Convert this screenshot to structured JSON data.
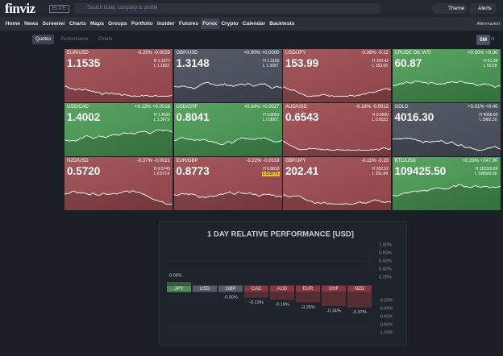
{
  "header": {
    "logo": "finviz",
    "badge": "ELITE",
    "search": "Search ticker, company or profile",
    "theme": "Theme",
    "alerts": "Alerts"
  },
  "nav": {
    "items": [
      "Home",
      "News",
      "Screener",
      "Charts",
      "Maps",
      "Groups",
      "Portfolio",
      "Insider",
      "Futures",
      "Forex",
      "Crypto",
      "Calendar",
      "Backtests"
    ],
    "active": "Forex",
    "right": "Aftermarket"
  },
  "tabs": {
    "items": [
      "Quotes",
      "Performance",
      "Charts"
    ],
    "active": "Quotes",
    "timeframe": "5M",
    "hour": "H"
  },
  "tiles": [
    {
      "name": "EUR/USD",
      "change": "-0.25% -0.0029",
      "value": "1.1535",
      "high": "H 1.1577",
      "low": "L 1.1522",
      "color": "red"
    },
    {
      "name": "GBP/USD",
      "change": "+0.00% +0.0000",
      "value": "1.3148",
      "high": "H 1.3165",
      "low": "L 1.3097",
      "color": "gray"
    },
    {
      "name": "USD/JPY",
      "change": "-0.08% -0.12",
      "value": "153.99",
      "high": "H 154.42",
      "low": "L 153.65",
      "color": "red"
    },
    {
      "name": "CRUDE OIL WTI",
      "change": "+0.50% +0.30",
      "value": "60.87",
      "high": "H 61.38",
      "low": "L 59.99",
      "color": "green"
    },
    {
      "name": "USD/CAD",
      "change": "+0.13% +0.0018",
      "value": "1.4002",
      "high": "H 1.4036",
      "low": "L 1.3979",
      "color": "green"
    },
    {
      "name": "USD/CHF",
      "change": "+0.34% +0.0027",
      "value": "0.8041",
      "high": "H 0.8052",
      "low": "L 0.8007",
      "color": "green"
    },
    {
      "name": "AUD/USD",
      "change": "-0.18% -0.0012",
      "value": "0.6543",
      "high": "H 0.6560",
      "low": "L 0.6533",
      "color": "red"
    },
    {
      "name": "GOLD",
      "change": "+0.01% +0.40",
      "value": "4016.30",
      "high": "H 4058.90",
      "low": "L 3982.30",
      "color": "gray"
    },
    {
      "name": "NZD/USD",
      "change": "-0.37% -0.0021",
      "value": "0.5720",
      "high": "H 0.5745",
      "low": "L 0.5714",
      "color": "red"
    },
    {
      "name": "EUR/GBP",
      "change": "-0.22% -0.0019",
      "value": "0.8773",
      "high": "H 0.8818",
      "low": "L 0.8771",
      "color": "red",
      "low_highlight": true
    },
    {
      "name": "GBP/JPY",
      "change": "-0.11% -0.23",
      "value": "202.41",
      "high": "H 202.92",
      "low": "L 201.84",
      "color": "red"
    },
    {
      "name": "BTC/USD",
      "change": "+0.23% +247.90",
      "value": "109425.50",
      "high": "H 111026.80",
      "low": "L 108500.00",
      "color": "green"
    }
  ],
  "chart_data": {
    "type": "bar",
    "title": "1 DAY RELATIVE PERFORMANCE  [USD]",
    "categories": [
      "JPY",
      "USD",
      "GBP",
      "CAD",
      "AUD",
      "EUR",
      "CHF",
      "NZD"
    ],
    "values": [
      0.08,
      0,
      -0.001,
      -0.13,
      -0.18,
      -0.25,
      -0.34,
      -0.37
    ],
    "value_labels": [
      "0.08%",
      null,
      "-0.00%",
      "-0.13%",
      "-0.18%",
      "-0.25%",
      "-0.34%",
      "-0.37%"
    ],
    "colors": [
      "#4f8a55",
      "#555b67",
      "#555b67",
      "#86383e",
      "#86383e",
      "#86383e",
      "#86383e",
      "#86383e"
    ],
    "ylim": [
      -1,
      1
    ],
    "yticks": [
      {
        "value": 1,
        "label": "1.00%"
      },
      {
        "value": 0.8,
        "label": "0.80%"
      },
      {
        "value": 0.6,
        "label": "0.60%"
      },
      {
        "value": 0.4,
        "label": "0.40%"
      },
      {
        "value": 0.2,
        "label": "0.20%"
      },
      {
        "value": -0.2,
        "label": "-0.20%"
      },
      {
        "value": -0.4,
        "label": "-0.40%"
      },
      {
        "value": -0.6,
        "label": "-0.60%"
      },
      {
        "value": -0.8,
        "label": "-0.80%"
      },
      {
        "value": -1,
        "label": "-1.00%"
      }
    ],
    "grid": true
  }
}
